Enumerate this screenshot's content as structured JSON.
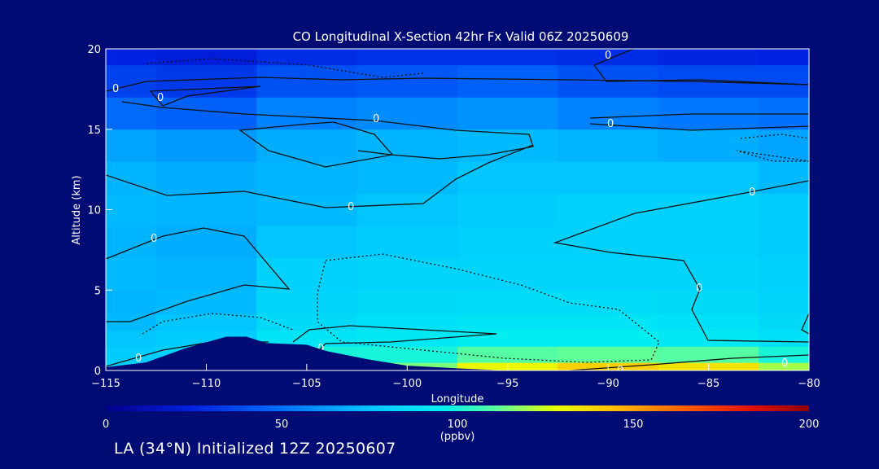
{
  "chart_data": {
    "type": "heatmap",
    "title": "CO Longitudinal X-Section 42hr  Fx Valid 06Z 20250609",
    "xlabel": "Longitude",
    "ylabel": "Altitude (km)",
    "xlim": [
      -115,
      -80
    ],
    "ylim": [
      0,
      20
    ],
    "x_ticks": [
      -115,
      -110,
      -105,
      -100,
      -95,
      -90,
      -85,
      -80
    ],
    "x_tick_labels": [
      "−115",
      "−110",
      "−105",
      "−100",
      "−95",
      "−90",
      "−85",
      "−80"
    ],
    "y_ticks": [
      0,
      5,
      10,
      15,
      20
    ],
    "y_tick_labels": [
      "0",
      "5",
      "10",
      "15",
      "20"
    ],
    "colorbar": {
      "min": 0,
      "max": 200,
      "ticks": [
        0,
        50,
        100,
        150,
        200
      ],
      "tick_labels": [
        "0",
        "50",
        "100",
        "150",
        "200"
      ],
      "unit": "(ppbv)"
    },
    "contour_label": "0",
    "x": [
      -115,
      -110,
      -105,
      -100,
      -95,
      -90,
      -85,
      -80
    ],
    "y": [
      0,
      1,
      2,
      3,
      4,
      6,
      8,
      10,
      12,
      14,
      16,
      18,
      20
    ],
    "z": [
      [
        80,
        85,
        110,
        115,
        130,
        140,
        135,
        120
      ],
      [
        78,
        80,
        100,
        100,
        110,
        112,
        110,
        100
      ],
      [
        75,
        78,
        90,
        92,
        95,
        95,
        92,
        88
      ],
      [
        72,
        75,
        85,
        88,
        90,
        90,
        88,
        85
      ],
      [
        70,
        72,
        82,
        85,
        86,
        86,
        85,
        82
      ],
      [
        72,
        70,
        80,
        82,
        82,
        82,
        82,
        80
      ],
      [
        70,
        68,
        75,
        78,
        80,
        80,
        80,
        78
      ],
      [
        72,
        70,
        72,
        75,
        78,
        80,
        80,
        78
      ],
      [
        70,
        68,
        70,
        72,
        75,
        75,
        75,
        72
      ],
      [
        65,
        62,
        68,
        70,
        72,
        70,
        68,
        65
      ],
      [
        48,
        45,
        55,
        58,
        60,
        55,
        52,
        50
      ],
      [
        35,
        32,
        40,
        42,
        45,
        40,
        38,
        38
      ],
      [
        25,
        22,
        28,
        30,
        30,
        28,
        26,
        25
      ]
    ],
    "terrain": [
      [
        -115,
        0.2
      ],
      [
        -113,
        0.5
      ],
      [
        -111,
        1.4
      ],
      [
        -109,
        2.1
      ],
      [
        -108,
        2.1
      ],
      [
        -107,
        1.7
      ],
      [
        -105,
        1.6
      ],
      [
        -104,
        1.2
      ],
      [
        -102,
        0.7
      ],
      [
        -100,
        0.3
      ],
      [
        -97,
        0.1
      ],
      [
        -95,
        0.0
      ],
      [
        -80,
        0.0
      ]
    ],
    "footer": "LA (34°N) Initialized 12Z 20250607"
  }
}
